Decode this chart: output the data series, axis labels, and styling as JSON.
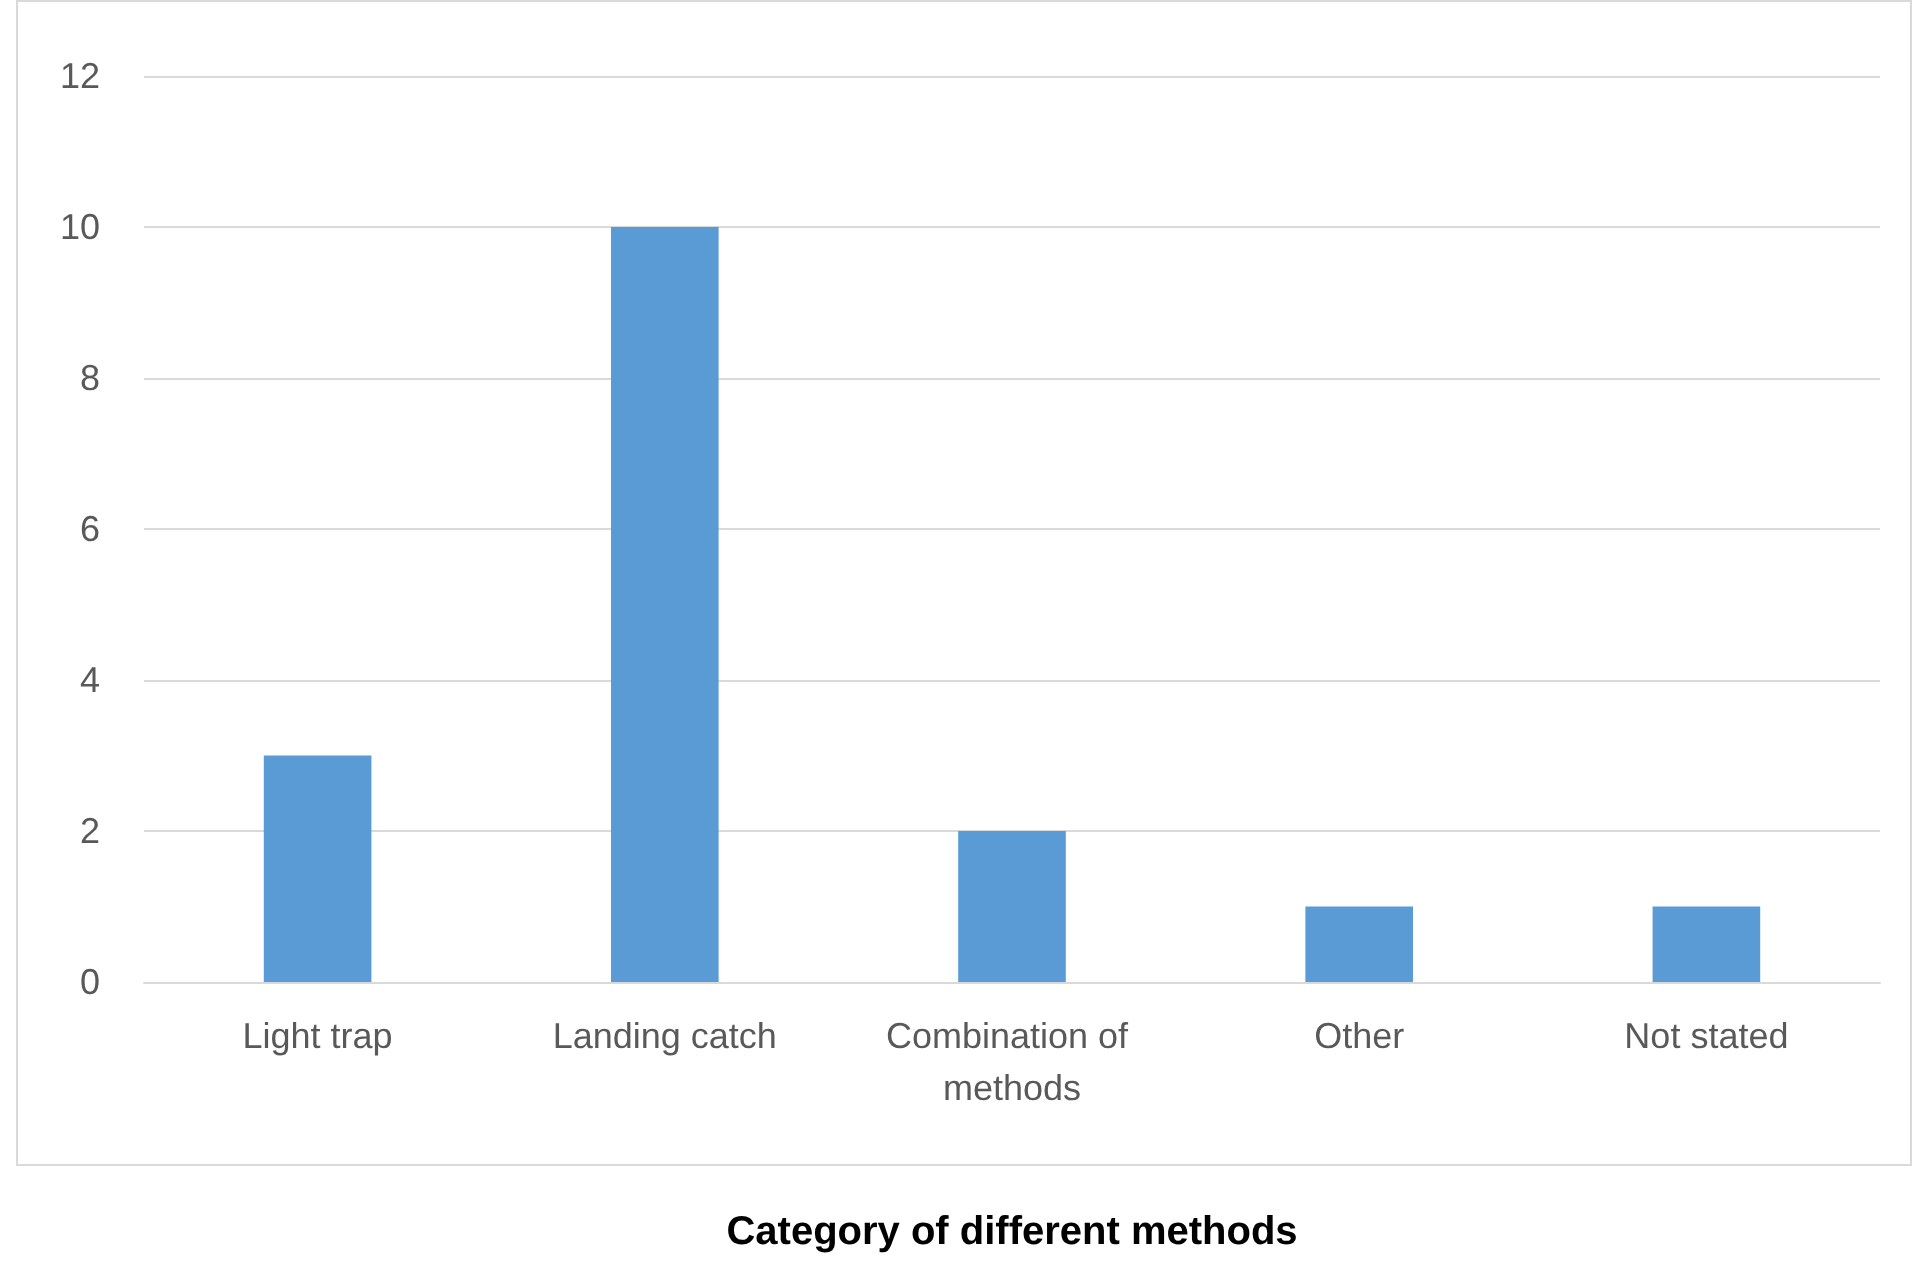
{
  "chart_data": {
    "type": "bar",
    "xlabel": "Category of different methods",
    "categories": [
      "Light trap",
      "Landing catch",
      "Combination of methods",
      "Other",
      "Not stated"
    ],
    "values": [
      3,
      10,
      2,
      1,
      1
    ],
    "color": "#5b9bd5",
    "ylim": [
      0,
      12
    ],
    "yticks": [
      0,
      2,
      4,
      6,
      8,
      10,
      12
    ],
    "grid": "y"
  }
}
